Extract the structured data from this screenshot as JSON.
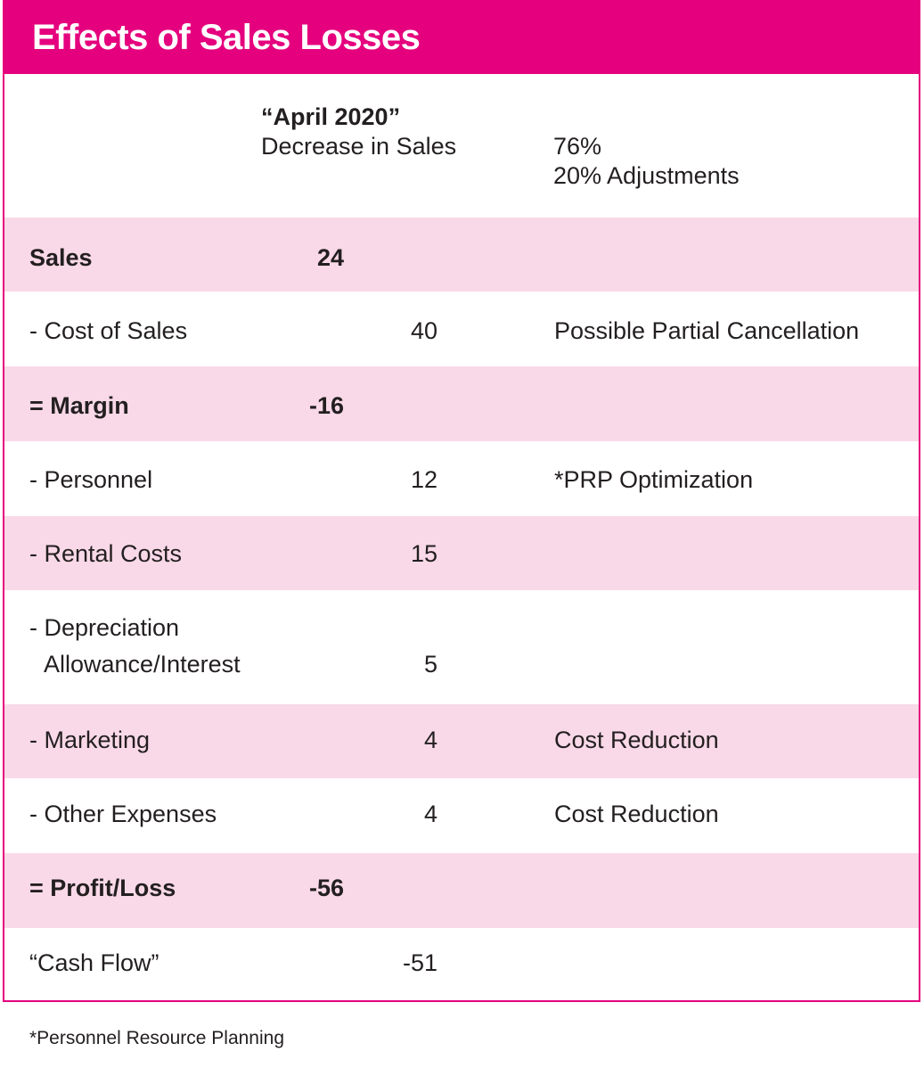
{
  "title": "Effects of Sales Losses",
  "header": {
    "period": "“April 2020”",
    "decrease_label": "Decrease in Sales",
    "percent": "76%",
    "adjustments": "20% Adjustments"
  },
  "rows": [
    {
      "label": "Sales",
      "value": "24",
      "note": ""
    },
    {
      "label": "- Cost of Sales",
      "value": "40",
      "note": "Possible Partial Cancellation"
    },
    {
      "label": "= Margin",
      "value": "-16",
      "note": ""
    },
    {
      "label": "- Personnel",
      "value": "12",
      "note": "*PRP Optimization"
    },
    {
      "label": "- Rental Costs",
      "value": "15",
      "note": ""
    },
    {
      "label_line1": "- Depreciation",
      "label_line2": "Allowance/Interest",
      "value": "5",
      "note": ""
    },
    {
      "label": "- Marketing",
      "value": "4",
      "note": "Cost Reduction"
    },
    {
      "label": "- Other Expenses",
      "value": "4",
      "note": "Cost Reduction"
    },
    {
      "label": "= Profit/Loss",
      "value": "-56",
      "note": ""
    },
    {
      "label": "“Cash Flow”",
      "value": "-51",
      "note": ""
    }
  ],
  "footnote": "*Personnel Resource Planning",
  "colors": {
    "accent": "#e5007e",
    "row_tint": "#f9d9e7",
    "text": "#231f20"
  }
}
